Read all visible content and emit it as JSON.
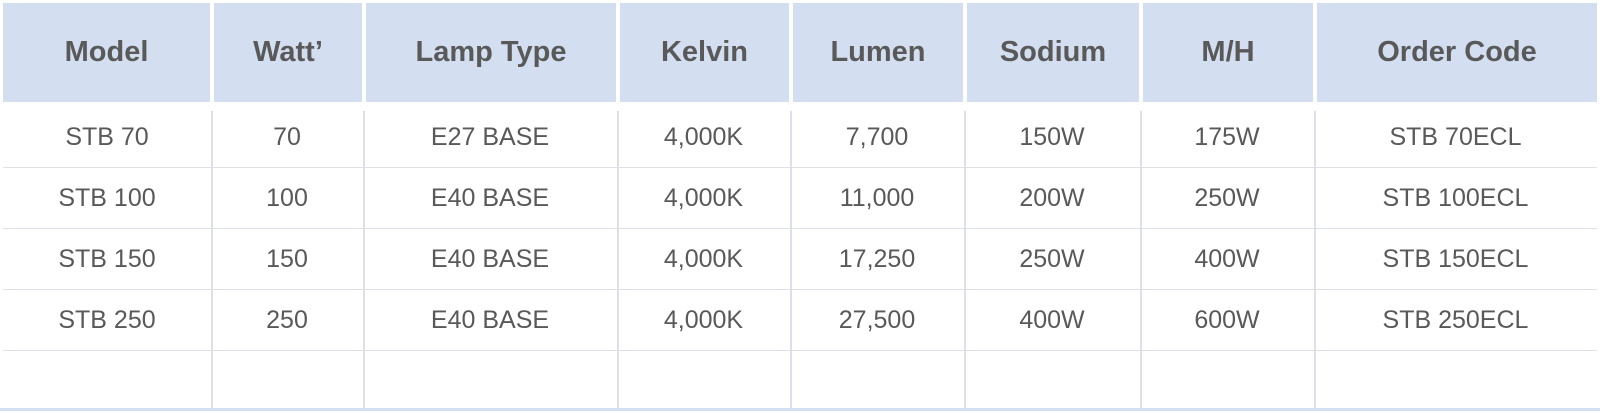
{
  "table": {
    "headers": [
      "Model",
      "Watt’",
      "Lamp Type",
      "Kelvin",
      "Lumen",
      "Sodium",
      "M/H",
      "Order Code"
    ],
    "rows": [
      [
        "STB 70",
        "70",
        "E27 BASE",
        "4,000K",
        "7,700",
        "150W",
        "175W",
        "STB 70ECL"
      ],
      [
        "STB 100",
        "100",
        "E40 BASE",
        "4,000K",
        "11,000",
        "200W",
        "250W",
        "STB 100ECL"
      ],
      [
        "STB 150",
        "150",
        "E40 BASE",
        "4,000K",
        "17,250",
        "250W",
        "400W",
        "STB 150ECL"
      ],
      [
        "STB 250",
        "250",
        "E40 BASE",
        "4,000K",
        "27,500",
        "400W",
        "600W",
        "STB 250ECL"
      ],
      [
        "",
        "",
        "",
        "",
        "",
        "",
        "",
        ""
      ]
    ]
  },
  "colors": {
    "header_background": "#d3dff0",
    "text": "#595959",
    "grid_lines": "#dde0e6"
  }
}
